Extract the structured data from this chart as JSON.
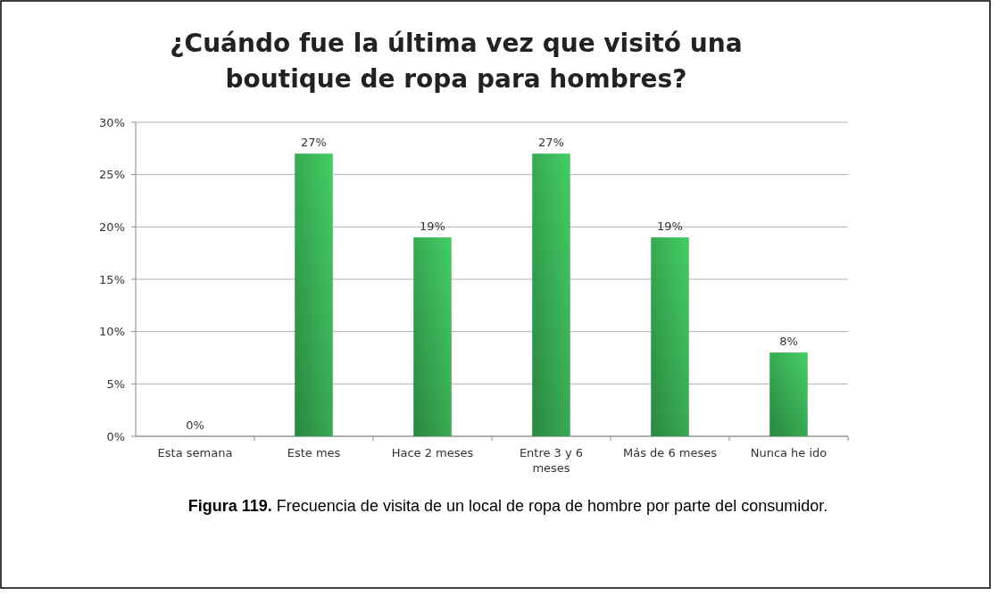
{
  "chart_data": {
    "type": "bar",
    "title": "¿Cuándo fue la última vez que visitó una boutique de ropa para hombres?",
    "categories": [
      "Esta semana",
      "Este mes",
      "Hace 2 meses",
      "Entre 3 y 6 meses",
      "Más de 6 meses",
      "Nunca he ido"
    ],
    "values": [
      0,
      27,
      19,
      27,
      19,
      8
    ],
    "color": "#3cb95a",
    "ylim": [
      0,
      30
    ],
    "yticks": [
      {
        "value": 0,
        "label": "0%"
      },
      {
        "value": 5,
        "label": "5%"
      },
      {
        "value": 10,
        "label": "10%"
      },
      {
        "value": 15,
        "label": "15%"
      },
      {
        "value": 20,
        "label": "20%"
      },
      {
        "value": 25,
        "label": "25%"
      },
      {
        "value": 30,
        "label": "30%"
      }
    ],
    "grid": "y",
    "value_labels": [
      "0%",
      "27%",
      "19%",
      "27%",
      "19%",
      "8%"
    ],
    "annotations": [
      "Figura 119. Frecuencia de visita de un local de ropa de hombre por parte del consumidor."
    ]
  }
}
